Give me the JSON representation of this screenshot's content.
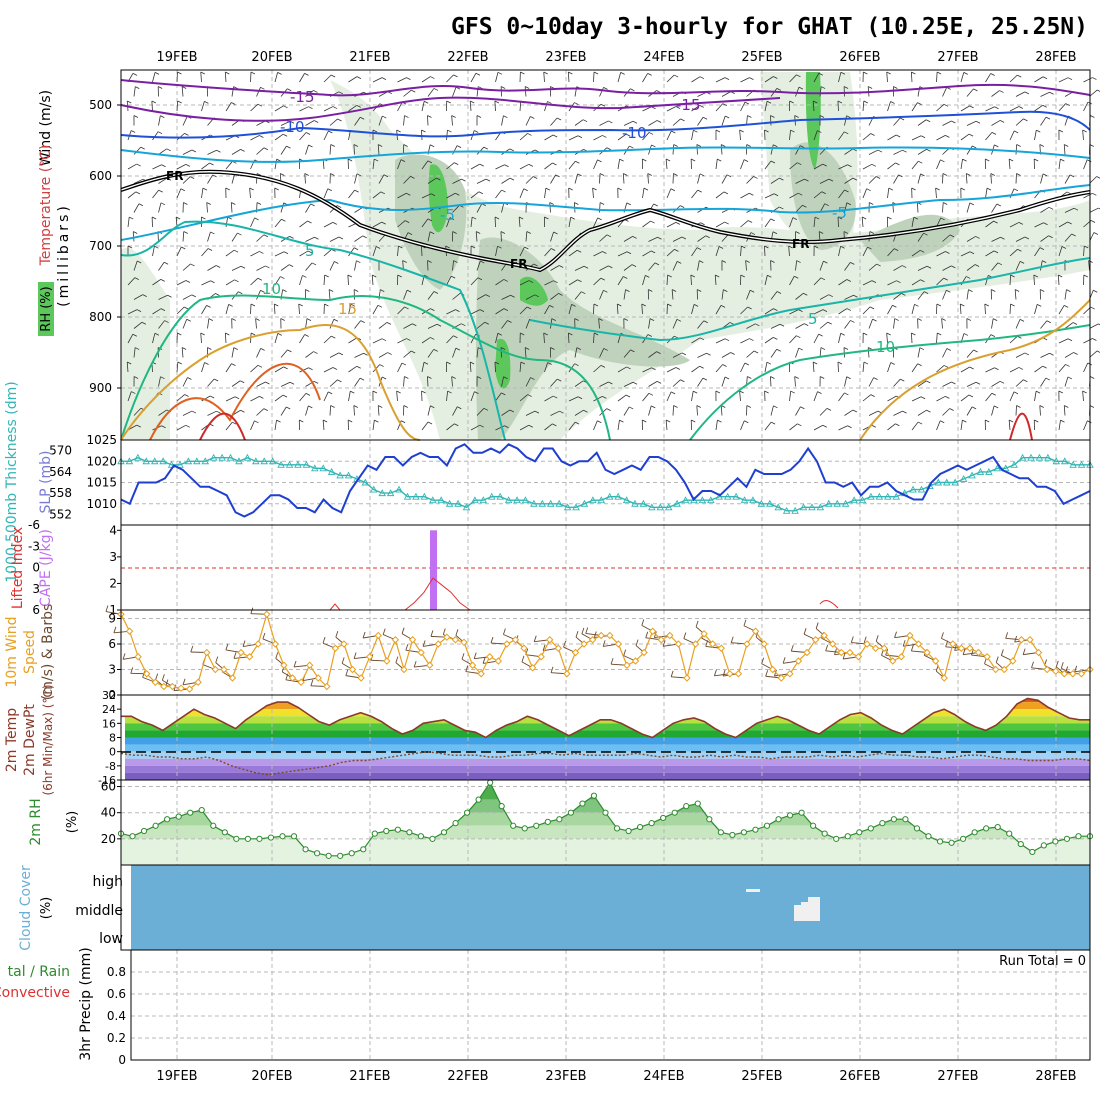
{
  "title": "GFS 0~10day 3-hourly for GHAT (10.25E, 25.25N)",
  "date_labels": [
    "19FEB",
    "20FEB",
    "21FEB",
    "22FEB",
    "23FEB",
    "24FEB",
    "25FEB",
    "26FEB",
    "27FEB",
    "28FEB"
  ],
  "panels": {
    "upper": {
      "ylabel_millibars": "(millibars)",
      "ylabel_wind": "Wind (m/s)",
      "ylabel_temp": "Temperature (°C)",
      "ylabel_rh": "RH (%)",
      "pressure_ticks": [
        "500",
        "600",
        "700",
        "800",
        "900"
      ],
      "labels": [
        "-15",
        "-15",
        "-10",
        "-10",
        "-5",
        "-5",
        "5",
        "5",
        "10",
        "10",
        "15",
        "FR",
        "FR",
        "FR"
      ]
    },
    "slp": {
      "ylabel_thick": "1000-500mb Thickness (dm)",
      "ylabel_slp": "SLP (mb)",
      "thick_ticks": [
        "570",
        "564",
        "558",
        "552"
      ],
      "slp_ticks": [
        "1025",
        "1020",
        "1015",
        "1010"
      ]
    },
    "cape": {
      "ylabel_li": "Lifted Index",
      "ylabel_cape": "CAPE (J/kg)",
      "li_ticks": [
        "-6",
        "-3",
        "0",
        "3",
        "6"
      ],
      "cape_ticks": [
        "4",
        "3",
        "2",
        "1"
      ]
    },
    "wind": {
      "ylabel_1": "10m Wind",
      "ylabel_2": "Speed",
      "ylabel_3": "(m/s) & Barbs",
      "ticks": [
        "9",
        "6",
        "3",
        "0"
      ]
    },
    "temp": {
      "ylabel_1": "2m Temp",
      "ylabel_2": "2m DewPt",
      "ylabel_3": "(6hr Min/Max) (°C)",
      "ticks": [
        "32",
        "24",
        "16",
        "8",
        "0",
        "-8",
        "-16"
      ]
    },
    "rh": {
      "ylabel_1": "2m RH",
      "ylabel_2": "(%)",
      "ticks": [
        "60",
        "40",
        "20"
      ]
    },
    "cloud": {
      "ylabel_1": "Cloud Cover",
      "ylabel_2": "(%)",
      "levels": [
        "high",
        "middle",
        "low"
      ]
    },
    "precip": {
      "ylabel_1": "tal / Rain",
      "ylabel_2": "Convective",
      "ylabel_3": "3hr Precip (mm)",
      "ticks": [
        "0.8",
        "0.6",
        "0.4",
        "0.2",
        "0"
      ],
      "run_total": "Run Total = 0"
    }
  },
  "chart_data": [
    {
      "type": "line",
      "name": "SLP (mb)",
      "ylim": [
        1005,
        1025
      ],
      "values": [
        1011,
        1010,
        1015,
        1015,
        1015,
        1016,
        1019,
        1018,
        1016,
        1014,
        1014,
        1013,
        1012,
        1008,
        1007,
        1008,
        1010,
        1012,
        1012,
        1011,
        1009,
        1009,
        1008,
        1011,
        1009,
        1008,
        1013,
        1016,
        1019,
        1018,
        1021,
        1021,
        1019,
        1021,
        1022,
        1021,
        1021,
        1019,
        1023,
        1024,
        1022,
        1022,
        1023,
        1022,
        1024,
        1023,
        1021,
        1020,
        1023,
        1023,
        1020,
        1019,
        1020,
        1020,
        1022,
        1018,
        1017,
        1018,
        1019,
        1018,
        1021,
        1021,
        1020,
        1018,
        1015,
        1011,
        1013,
        1013,
        1012,
        1014,
        1016,
        1014,
        1018,
        1017,
        1017,
        1017,
        1018,
        1020,
        1023,
        1020,
        1015,
        1015,
        1014,
        1015,
        1012,
        1014,
        1014,
        1015,
        1013,
        1012,
        1011,
        1011,
        1015,
        1017,
        1018,
        1019,
        1018,
        1019,
        1020,
        1021,
        1018,
        1017,
        1016,
        1016,
        1014,
        1014,
        1013,
        1010,
        1011,
        1012,
        1013
      ]
    },
    {
      "type": "line",
      "name": "1000-500mb Thickness (dm)",
      "ylim": [
        549,
        573
      ],
      "values": [
        567,
        567,
        568,
        567,
        567,
        567,
        566,
        566,
        567,
        567,
        567,
        568,
        568,
        568,
        567,
        568,
        567,
        567,
        567,
        566,
        566,
        566,
        566,
        565,
        565,
        564,
        563,
        563,
        562,
        561,
        559,
        558,
        558,
        559,
        557,
        557,
        557,
        556,
        556,
        555,
        555,
        554,
        556,
        556,
        557,
        557,
        556,
        556,
        556,
        555,
        555,
        555,
        555,
        554,
        554,
        555,
        556,
        556,
        557,
        557,
        556,
        555,
        555,
        554,
        554,
        554,
        555,
        556,
        556,
        556,
        556,
        557,
        557,
        557,
        556,
        556,
        555,
        555,
        554,
        553,
        553,
        554,
        554,
        554,
        555,
        555,
        555,
        556,
        556,
        557,
        557,
        557,
        557,
        558,
        559,
        559,
        560,
        561,
        561,
        561,
        562,
        563,
        564,
        564,
        565,
        565,
        566,
        568,
        568,
        568,
        568,
        567,
        567,
        566,
        566,
        566
      ]
    },
    {
      "type": "line",
      "name": "10m Wind Speed (m/s)",
      "ylim": [
        0,
        10
      ],
      "values": [
        9.5,
        7.5,
        4.5,
        2.5,
        1.5,
        1,
        1,
        0.8,
        0.7,
        1.5,
        5,
        3,
        3,
        2,
        5,
        4.5,
        6,
        9.5,
        6,
        3.5,
        2,
        1.5,
        3.5,
        2,
        1,
        5.5,
        6,
        3,
        2,
        4.5,
        7,
        4,
        6.5,
        3,
        6.5,
        5,
        3.5,
        6,
        6.8,
        6.5,
        6.2,
        3.5,
        2.5,
        4.5,
        4,
        6,
        6.5,
        5.5,
        3.2,
        4.5,
        6.5,
        5.5,
        2.5,
        5,
        6,
        6.5,
        7,
        7,
        6,
        3.5,
        4,
        5,
        7.5,
        6.5,
        7,
        6,
        2,
        6,
        7.2,
        6,
        5.5,
        2.5,
        2.5,
        6,
        7.5,
        6,
        3,
        2,
        2.5,
        4,
        5,
        6.5,
        7,
        6,
        5,
        5,
        4.5,
        6,
        5.5,
        5.5,
        4,
        4.5,
        7,
        6,
        5,
        4,
        2,
        6,
        5.5,
        5.5,
        5,
        4.5,
        3,
        3,
        4,
        6.5,
        6.5,
        5,
        3,
        2.8,
        2.5,
        2.5,
        2.5,
        3
      ]
    },
    {
      "type": "area",
      "name": "2m Temp (°C)",
      "ylim": [
        -16,
        32
      ],
      "values": [
        20,
        20,
        17,
        15,
        12,
        16,
        20,
        24,
        21,
        19,
        16,
        13,
        18,
        22,
        26,
        28,
        28,
        25,
        21,
        17,
        15,
        18,
        20,
        22,
        20,
        17,
        13,
        10,
        12,
        16,
        17,
        18,
        15,
        12,
        11,
        8,
        12,
        15,
        17,
        20,
        18,
        15,
        12,
        9,
        12,
        15,
        18,
        18,
        16,
        13,
        10,
        8,
        12,
        16,
        18,
        19,
        17,
        13,
        10,
        8,
        12,
        16,
        18,
        20,
        18,
        15,
        12,
        10,
        14,
        18,
        21,
        22,
        19,
        15,
        12,
        10,
        14,
        18,
        22,
        24,
        21,
        17,
        14,
        12,
        15,
        20,
        27,
        30,
        29,
        25,
        22,
        19,
        18,
        18
      ]
    },
    {
      "type": "line",
      "name": "2m DewPt (°C)",
      "ylim": [
        -16,
        32
      ],
      "values": [
        -1,
        -2,
        -2,
        -3,
        -3,
        -4,
        -4,
        -3,
        -5,
        -8,
        -10,
        -12,
        -13,
        -12,
        -11,
        -10,
        -9,
        -8,
        -6,
        -5,
        -5,
        -4,
        -3,
        -2,
        -1,
        0,
        -1,
        -2,
        -2,
        -2,
        -3,
        -3,
        -2,
        -2,
        -1,
        -1,
        -2,
        -1,
        -2,
        -2,
        -2,
        -2,
        -1,
        -2,
        -3,
        -2,
        -3,
        -3,
        -2,
        -3,
        -2,
        -3,
        -3,
        -4,
        -3,
        -3,
        -3,
        -2,
        -3,
        -2,
        -3,
        -2,
        -1,
        -2,
        -2,
        -3,
        -3,
        -4,
        -3,
        -2,
        -2,
        -3,
        -4,
        -4,
        -5,
        -5,
        -5,
        -4,
        -4,
        -5
      ]
    },
    {
      "type": "area",
      "name": "2m RH (%)",
      "ylim": [
        0,
        65
      ],
      "values": [
        24,
        22,
        26,
        30,
        35,
        37,
        40,
        42,
        30,
        25,
        20,
        20,
        20,
        21,
        22,
        22,
        12,
        9,
        7,
        7,
        9,
        12,
        24,
        26,
        27,
        25,
        22,
        20,
        25,
        32,
        40,
        50,
        63,
        45,
        30,
        28,
        30,
        33,
        35,
        40,
        47,
        53,
        40,
        28,
        26,
        29,
        32,
        36,
        40,
        45,
        47,
        35,
        25,
        23,
        25,
        27,
        30,
        35,
        38,
        40,
        30,
        24,
        20,
        22,
        25,
        28,
        32,
        35,
        35,
        28,
        22,
        18,
        17,
        20,
        25,
        28,
        29,
        24,
        16,
        10,
        15,
        18,
        20,
        22,
        22
      ]
    },
    {
      "type": "bar",
      "name": "CAPE (J/kg)",
      "ylim": [
        1,
        4.2
      ],
      "values": [
        4
      ]
    },
    {
      "type": "line",
      "name": "Lifted Index",
      "ylim": [
        -6,
        6
      ],
      "values": [
        6,
        5,
        3.5,
        1.5,
        2.5,
        3.5,
        5,
        6
      ]
    },
    {
      "type": "bar",
      "name": "3hr Precip (mm)",
      "ylim": [
        0,
        1
      ],
      "values": [
        0
      ]
    }
  ],
  "colors": {
    "slp": "#1f3fd0",
    "thickness": "#33b5b5",
    "wind_speed": "#e8a020",
    "dewpt": "#7a4a2a",
    "rh_line": "#2e8b2e",
    "cape": "#c070f0",
    "lifted_index": "#e03030",
    "cloud": "#6baed6",
    "temp_m15": "#7b1fa2",
    "temp_m10": "#1e50d8",
    "temp_m5": "#16a5d8",
    "temp_5": "#18b5a8",
    "temp_10": "#20b880",
    "temp_15": "#d9a030"
  }
}
